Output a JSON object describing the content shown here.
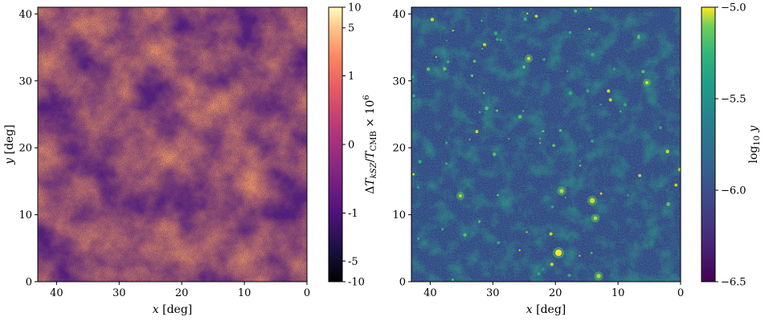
{
  "chart_data": [
    {
      "type": "heatmap",
      "xlabel": "x [deg]",
      "ylabel": "y [deg]",
      "xlim": [
        43,
        0
      ],
      "ylim": [
        0,
        41
      ],
      "xticks": [
        40,
        30,
        20,
        10,
        0
      ],
      "yticks": [
        0,
        10,
        20,
        30,
        40
      ],
      "colormap": "magma",
      "colorbar": {
        "label": "ΔT_kSZ/T_CMB × 10^6",
        "scale": "symlog",
        "range": [
          -10,
          10
        ],
        "ticks": [
          {
            "value": 10,
            "label": "10"
          },
          {
            "value": 5,
            "label": "5"
          },
          {
            "value": 1,
            "label": "1"
          },
          {
            "value": 0,
            "label": "0"
          },
          {
            "value": -1,
            "label": "-1"
          },
          {
            "value": -5,
            "label": "-5"
          },
          {
            "value": -10,
            "label": "-10"
          }
        ]
      }
    },
    {
      "type": "heatmap",
      "xlabel": "x [deg]",
      "ylabel": "",
      "xlim": [
        43,
        0
      ],
      "ylim": [
        0,
        41
      ],
      "xticks": [
        40,
        30,
        20,
        10,
        0
      ],
      "yticks": [
        0,
        10,
        20,
        30,
        40
      ],
      "colormap": "viridis",
      "colorbar": {
        "label": "log10 y",
        "scale": "linear",
        "range": [
          -6.5,
          -5.0
        ],
        "ticks": [
          {
            "value": -5.0,
            "label": "−5.0"
          },
          {
            "value": -5.5,
            "label": "−5.5"
          },
          {
            "value": -6.0,
            "label": "−6.0"
          },
          {
            "value": -6.5,
            "label": "−6.5"
          }
        ]
      }
    }
  ]
}
